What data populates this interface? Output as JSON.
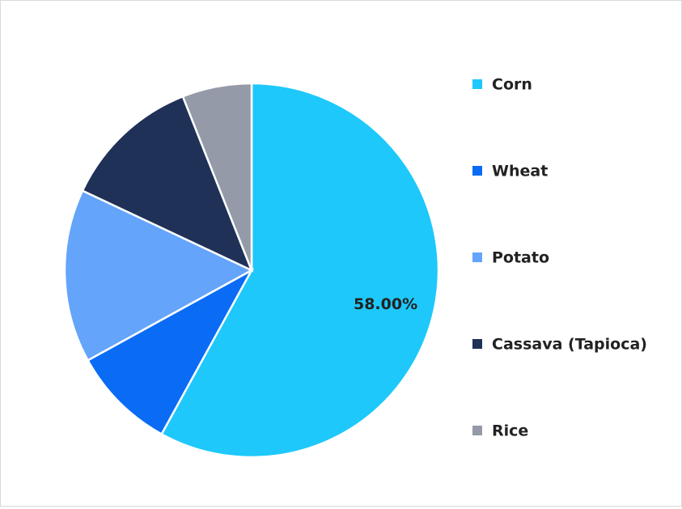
{
  "chart_data": {
    "type": "pie",
    "categories": [
      "Corn",
      "Wheat",
      "Potato",
      "Cassava (Tapioca)",
      "Rice"
    ],
    "values": [
      58,
      9,
      15,
      12,
      6
    ],
    "value_labels": [
      "58.00%",
      null,
      null,
      null,
      null
    ],
    "colors": [
      "#1ec8fb",
      "#0a6cf5",
      "#64a4fb",
      "#1f3157",
      "#959aa8"
    ],
    "legend": "right"
  }
}
